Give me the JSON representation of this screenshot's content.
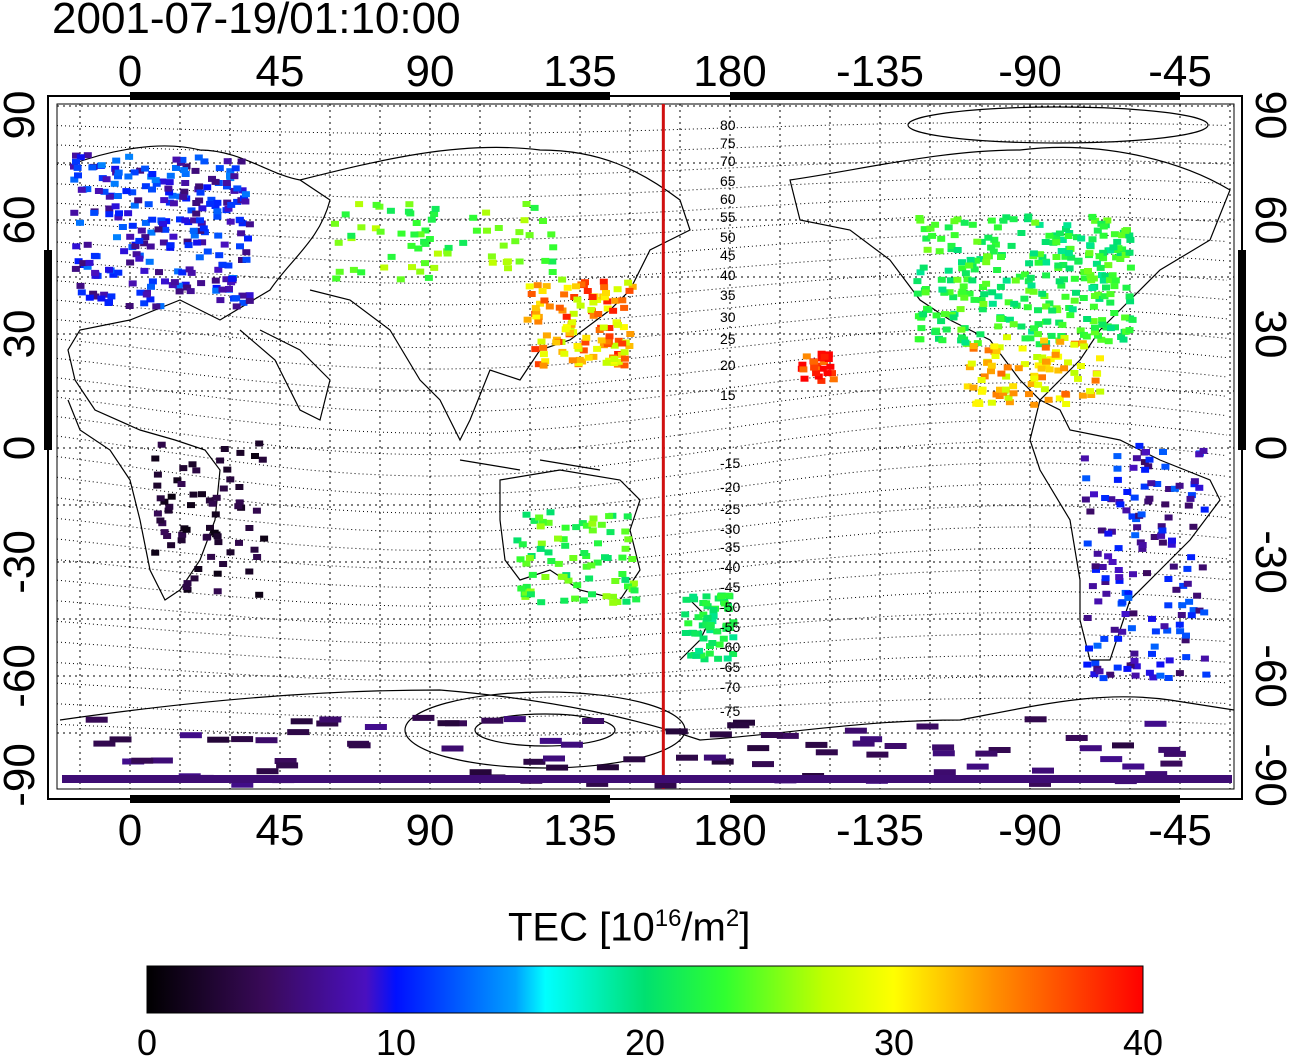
{
  "timestamp": "2001-07-19/01:10:00",
  "map": {
    "lon_ticks": [
      "0",
      "45",
      "90",
      "135",
      "180",
      "-135",
      "-90",
      "-45"
    ],
    "lat_ticks": [
      "90",
      "60",
      "30",
      "0",
      "-30",
      "-60",
      "-90"
    ],
    "contour_labels": [
      "80",
      "75",
      "70",
      "65",
      "60",
      "55",
      "50",
      "45",
      "40",
      "35",
      "30",
      "25",
      "20",
      "15",
      "-15",
      "-20",
      "-25",
      "-30",
      "-35",
      "-40",
      "-45",
      "-50",
      "-55",
      "-60",
      "-65",
      "-70",
      "-75"
    ],
    "terminator_color": "#d01010",
    "terminator_lon": 160
  },
  "colorbar": {
    "title_main": "TEC  [10",
    "title_exp1": "16",
    "title_mid": "/m",
    "title_exp2": "2",
    "title_end": "]",
    "ticks": [
      "0",
      "10",
      "20",
      "30",
      "40"
    ],
    "min": 0,
    "max": 40
  },
  "clusters": [
    {
      "region": "europe",
      "value": 10
    },
    {
      "region": "north-america",
      "value": 22
    },
    {
      "region": "east-asia",
      "value": 33
    },
    {
      "region": "caribbean",
      "value": 31
    },
    {
      "region": "pacific",
      "value": 38
    },
    {
      "region": "africa",
      "value": 3
    },
    {
      "region": "south-america",
      "value": 9
    },
    {
      "region": "australia",
      "value": 23
    },
    {
      "region": "new-zealand",
      "value": 21
    },
    {
      "region": "antarctica",
      "value": 5
    },
    {
      "region": "russia",
      "value": 24
    }
  ]
}
